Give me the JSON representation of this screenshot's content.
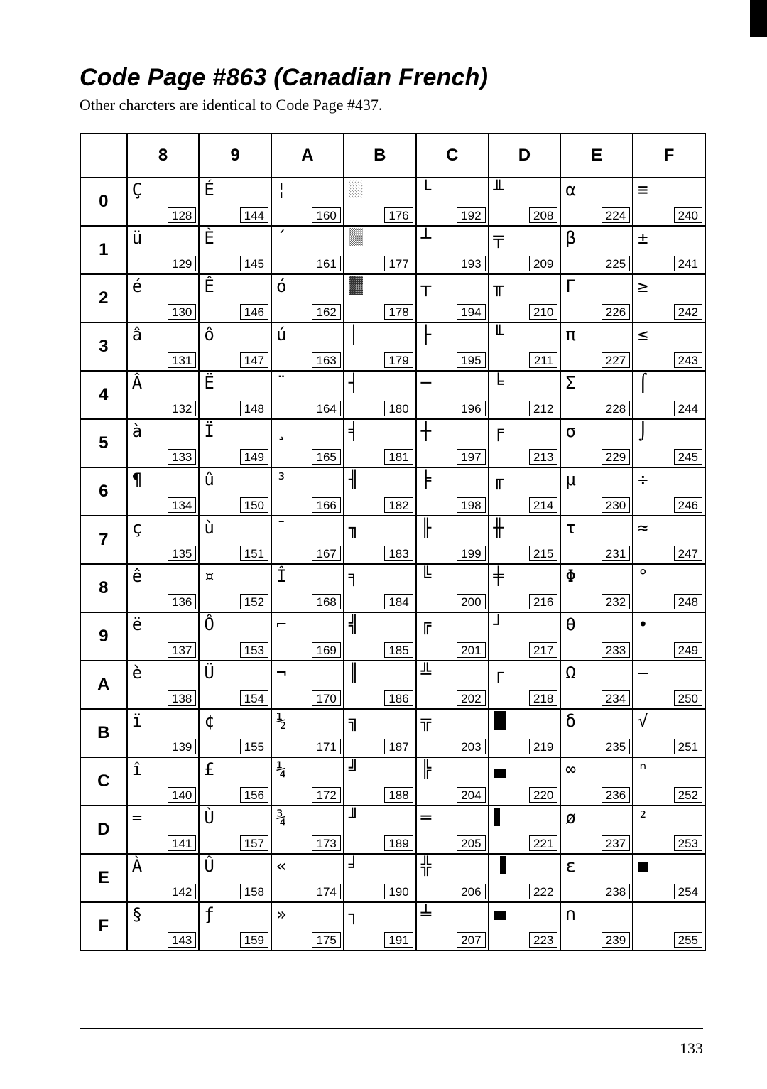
{
  "title": "Code Page #863 (Canadian French)",
  "subtitle": "Other charcters are identical to Code Page #437.",
  "page_number": "133",
  "columns": [
    "8",
    "9",
    "A",
    "B",
    "C",
    "D",
    "E",
    "F"
  ],
  "rows": [
    "0",
    "1",
    "2",
    "3",
    "4",
    "5",
    "6",
    "7",
    "8",
    "9",
    "A",
    "B",
    "C",
    "D",
    "E",
    "F"
  ],
  "cells": {
    "0": [
      {
        "g": "Ç",
        "c": "128"
      },
      {
        "g": "É",
        "c": "144"
      },
      {
        "g": "¦",
        "c": "160"
      },
      {
        "g": "░",
        "c": "176",
        "cls": "shade-light"
      },
      {
        "g": "└",
        "c": "192"
      },
      {
        "g": "╨",
        "c": "208"
      },
      {
        "g": "α",
        "c": "224"
      },
      {
        "g": "≡",
        "c": "240"
      }
    ],
    "1": [
      {
        "g": "ü",
        "c": "129"
      },
      {
        "g": "È",
        "c": "145"
      },
      {
        "g": "´",
        "c": "161"
      },
      {
        "g": "▒",
        "c": "177",
        "cls": "shade-med"
      },
      {
        "g": "┴",
        "c": "193"
      },
      {
        "g": "╤",
        "c": "209"
      },
      {
        "g": "β",
        "c": "225"
      },
      {
        "g": "±",
        "c": "241"
      }
    ],
    "2": [
      {
        "g": "é",
        "c": "130"
      },
      {
        "g": "Ê",
        "c": "146"
      },
      {
        "g": "ó",
        "c": "162"
      },
      {
        "g": "▓",
        "c": "178",
        "cls": "shade-dark"
      },
      {
        "g": "┬",
        "c": "194"
      },
      {
        "g": "╥",
        "c": "210"
      },
      {
        "g": "Γ",
        "c": "226"
      },
      {
        "g": "≥",
        "c": "242"
      }
    ],
    "3": [
      {
        "g": "â",
        "c": "131"
      },
      {
        "g": "ô",
        "c": "147"
      },
      {
        "g": "ú",
        "c": "163"
      },
      {
        "g": "│",
        "c": "179"
      },
      {
        "g": "├",
        "c": "195"
      },
      {
        "g": "╙",
        "c": "211"
      },
      {
        "g": "π",
        "c": "227"
      },
      {
        "g": "≤",
        "c": "243"
      }
    ],
    "4": [
      {
        "g": "Â",
        "c": "132"
      },
      {
        "g": "Ë",
        "c": "148"
      },
      {
        "g": "¨",
        "c": "164"
      },
      {
        "g": "┤",
        "c": "180"
      },
      {
        "g": "─",
        "c": "196"
      },
      {
        "g": "╘",
        "c": "212"
      },
      {
        "g": "Σ",
        "c": "228"
      },
      {
        "g": "⌠",
        "c": "244"
      }
    ],
    "5": [
      {
        "g": "à",
        "c": "133"
      },
      {
        "g": "Ï",
        "c": "149"
      },
      {
        "g": "¸",
        "c": "165"
      },
      {
        "g": "╡",
        "c": "181"
      },
      {
        "g": "┼",
        "c": "197"
      },
      {
        "g": "╒",
        "c": "213"
      },
      {
        "g": "σ",
        "c": "229"
      },
      {
        "g": "⌡",
        "c": "245"
      }
    ],
    "6": [
      {
        "g": "¶",
        "c": "134"
      },
      {
        "g": "û",
        "c": "150"
      },
      {
        "g": "³",
        "c": "166"
      },
      {
        "g": "╢",
        "c": "182"
      },
      {
        "g": "╞",
        "c": "198"
      },
      {
        "g": "╓",
        "c": "214"
      },
      {
        "g": "μ",
        "c": "230"
      },
      {
        "g": "÷",
        "c": "246"
      }
    ],
    "7": [
      {
        "g": "ç",
        "c": "135"
      },
      {
        "g": "ù",
        "c": "151"
      },
      {
        "g": "¯",
        "c": "167"
      },
      {
        "g": "╖",
        "c": "183"
      },
      {
        "g": "╟",
        "c": "199"
      },
      {
        "g": "╫",
        "c": "215"
      },
      {
        "g": "τ",
        "c": "231"
      },
      {
        "g": "≈",
        "c": "247"
      }
    ],
    "8": [
      {
        "g": "ê",
        "c": "136"
      },
      {
        "g": "¤",
        "c": "152"
      },
      {
        "g": "Î",
        "c": "168"
      },
      {
        "g": "╕",
        "c": "184"
      },
      {
        "g": "╚",
        "c": "200"
      },
      {
        "g": "╪",
        "c": "216"
      },
      {
        "g": "Φ",
        "c": "232"
      },
      {
        "g": "°",
        "c": "248"
      }
    ],
    "9": [
      {
        "g": "ë",
        "c": "137"
      },
      {
        "g": "Ô",
        "c": "153"
      },
      {
        "g": "⌐",
        "c": "169"
      },
      {
        "g": "╣",
        "c": "185"
      },
      {
        "g": "╔",
        "c": "201"
      },
      {
        "g": "┘",
        "c": "217"
      },
      {
        "g": "θ",
        "c": "233"
      },
      {
        "g": "•",
        "c": "249"
      }
    ],
    "A": [
      {
        "g": "è",
        "c": "138"
      },
      {
        "g": "Ü",
        "c": "154"
      },
      {
        "g": "¬",
        "c": "170"
      },
      {
        "g": "║",
        "c": "186"
      },
      {
        "g": "╩",
        "c": "202"
      },
      {
        "g": "┌",
        "c": "218"
      },
      {
        "g": "Ω",
        "c": "234"
      },
      {
        "g": "‒",
        "c": "250"
      }
    ],
    "B": [
      {
        "g": "ï",
        "c": "139"
      },
      {
        "g": "¢",
        "c": "155"
      },
      {
        "g": "½",
        "c": "171"
      },
      {
        "g": "╗",
        "c": "187"
      },
      {
        "g": "╦",
        "c": "203"
      },
      {
        "g": "█",
        "c": "219",
        "cls": "block-full"
      },
      {
        "g": "δ",
        "c": "235"
      },
      {
        "g": "√",
        "c": "251"
      }
    ],
    "C": [
      {
        "g": "î",
        "c": "140"
      },
      {
        "g": "£",
        "c": "156"
      },
      {
        "g": "¼",
        "c": "172"
      },
      {
        "g": "╝",
        "c": "188"
      },
      {
        "g": "╠",
        "c": "204"
      },
      {
        "g": "▄",
        "c": "220",
        "cls": "block-lower"
      },
      {
        "g": "∞",
        "c": "236"
      },
      {
        "g": "ⁿ",
        "c": "252"
      }
    ],
    "D": [
      {
        "g": "=",
        "c": "141"
      },
      {
        "g": "Ù",
        "c": "157"
      },
      {
        "g": "¾",
        "c": "173"
      },
      {
        "g": "╜",
        "c": "189"
      },
      {
        "g": "═",
        "c": "205"
      },
      {
        "g": "▌",
        "c": "221",
        "cls": "block-left"
      },
      {
        "g": "ø",
        "c": "237"
      },
      {
        "g": "²",
        "c": "253"
      }
    ],
    "E": [
      {
        "g": "À",
        "c": "142"
      },
      {
        "g": "Û",
        "c": "158"
      },
      {
        "g": "«",
        "c": "174"
      },
      {
        "g": "╛",
        "c": "190"
      },
      {
        "g": "╬",
        "c": "206"
      },
      {
        "g": "▐",
        "c": "222",
        "cls": "block-right"
      },
      {
        "g": "ε",
        "c": "238"
      },
      {
        "g": "■",
        "c": "254"
      }
    ],
    "F": [
      {
        "g": "§",
        "c": "143"
      },
      {
        "g": "ƒ",
        "c": "159"
      },
      {
        "g": "»",
        "c": "175"
      },
      {
        "g": "┐",
        "c": "191"
      },
      {
        "g": "╧",
        "c": "207"
      },
      {
        "g": "▀",
        "c": "223",
        "cls": "block-upper"
      },
      {
        "g": "∩",
        "c": "239"
      },
      {
        "g": "",
        "c": "255"
      }
    ]
  }
}
